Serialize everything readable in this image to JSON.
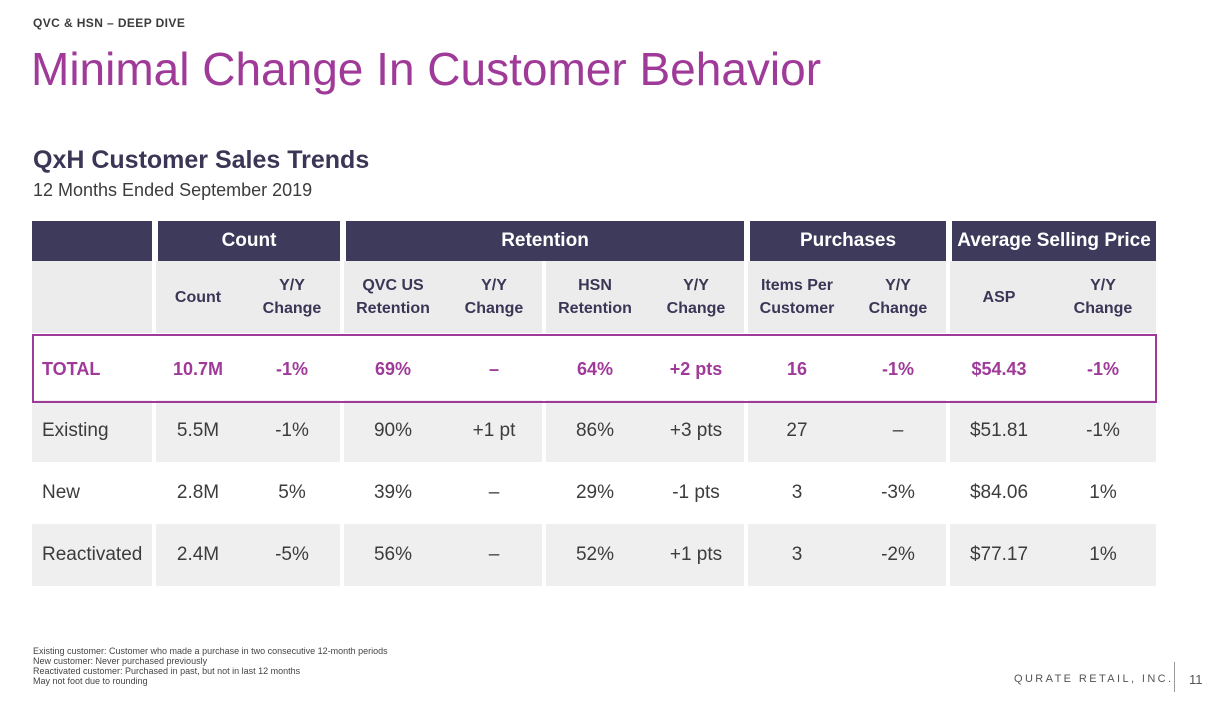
{
  "kicker": "QVC & HSN – DEEP DIVE",
  "title": "Minimal Change In Customer Behavior",
  "subhead": "QxH Customer Sales Trends",
  "subtitle": "12 Months Ended September 2019",
  "groups": [
    "Count",
    "Retention",
    "Purchases",
    "Average Selling Price"
  ],
  "columns": [
    "Count",
    "Y/Y\nChange",
    "QVC US\nRetention",
    "Y/Y\nChange",
    "HSN\nRetention",
    "Y/Y\nChange",
    "Items Per\nCustomer",
    "Y/Y\nChange",
    "ASP",
    "Y/Y\nChange"
  ],
  "rows": [
    {
      "label": "TOTAL",
      "values": [
        "10.7M",
        "-1%",
        "69%",
        "–",
        "64%",
        "+2 pts",
        "16",
        "-1%",
        "$54.43",
        "-1%"
      ]
    },
    {
      "label": "Existing",
      "values": [
        "5.5M",
        "-1%",
        "90%",
        "+1 pt",
        "86%",
        "+3 pts",
        "27",
        "–",
        "$51.81",
        "-1%"
      ]
    },
    {
      "label": "New",
      "values": [
        "2.8M",
        "5%",
        "39%",
        "–",
        "29%",
        "-1 pts",
        "3",
        "-3%",
        "$84.06",
        "1%"
      ]
    },
    {
      "label": "Reactivated",
      "values": [
        "2.4M",
        "-5%",
        "56%",
        "–",
        "52%",
        "+1 pts",
        "3",
        "-2%",
        "$77.17",
        "1%"
      ]
    }
  ],
  "footnotes": [
    "Existing customer: Customer who made a purchase in two consecutive 12-month periods",
    "New customer: Never purchased previously",
    "Reactivated customer: Purchased in past, but not in last 12 months",
    "May not foot due to rounding"
  ],
  "brand": "QURATE RETAIL, INC.",
  "page_number": "11",
  "colors": {
    "accent": "#a03a99",
    "header_bg": "#3e3a5b",
    "subheader_bg": "#ececec",
    "row_shade": "#efefef"
  }
}
